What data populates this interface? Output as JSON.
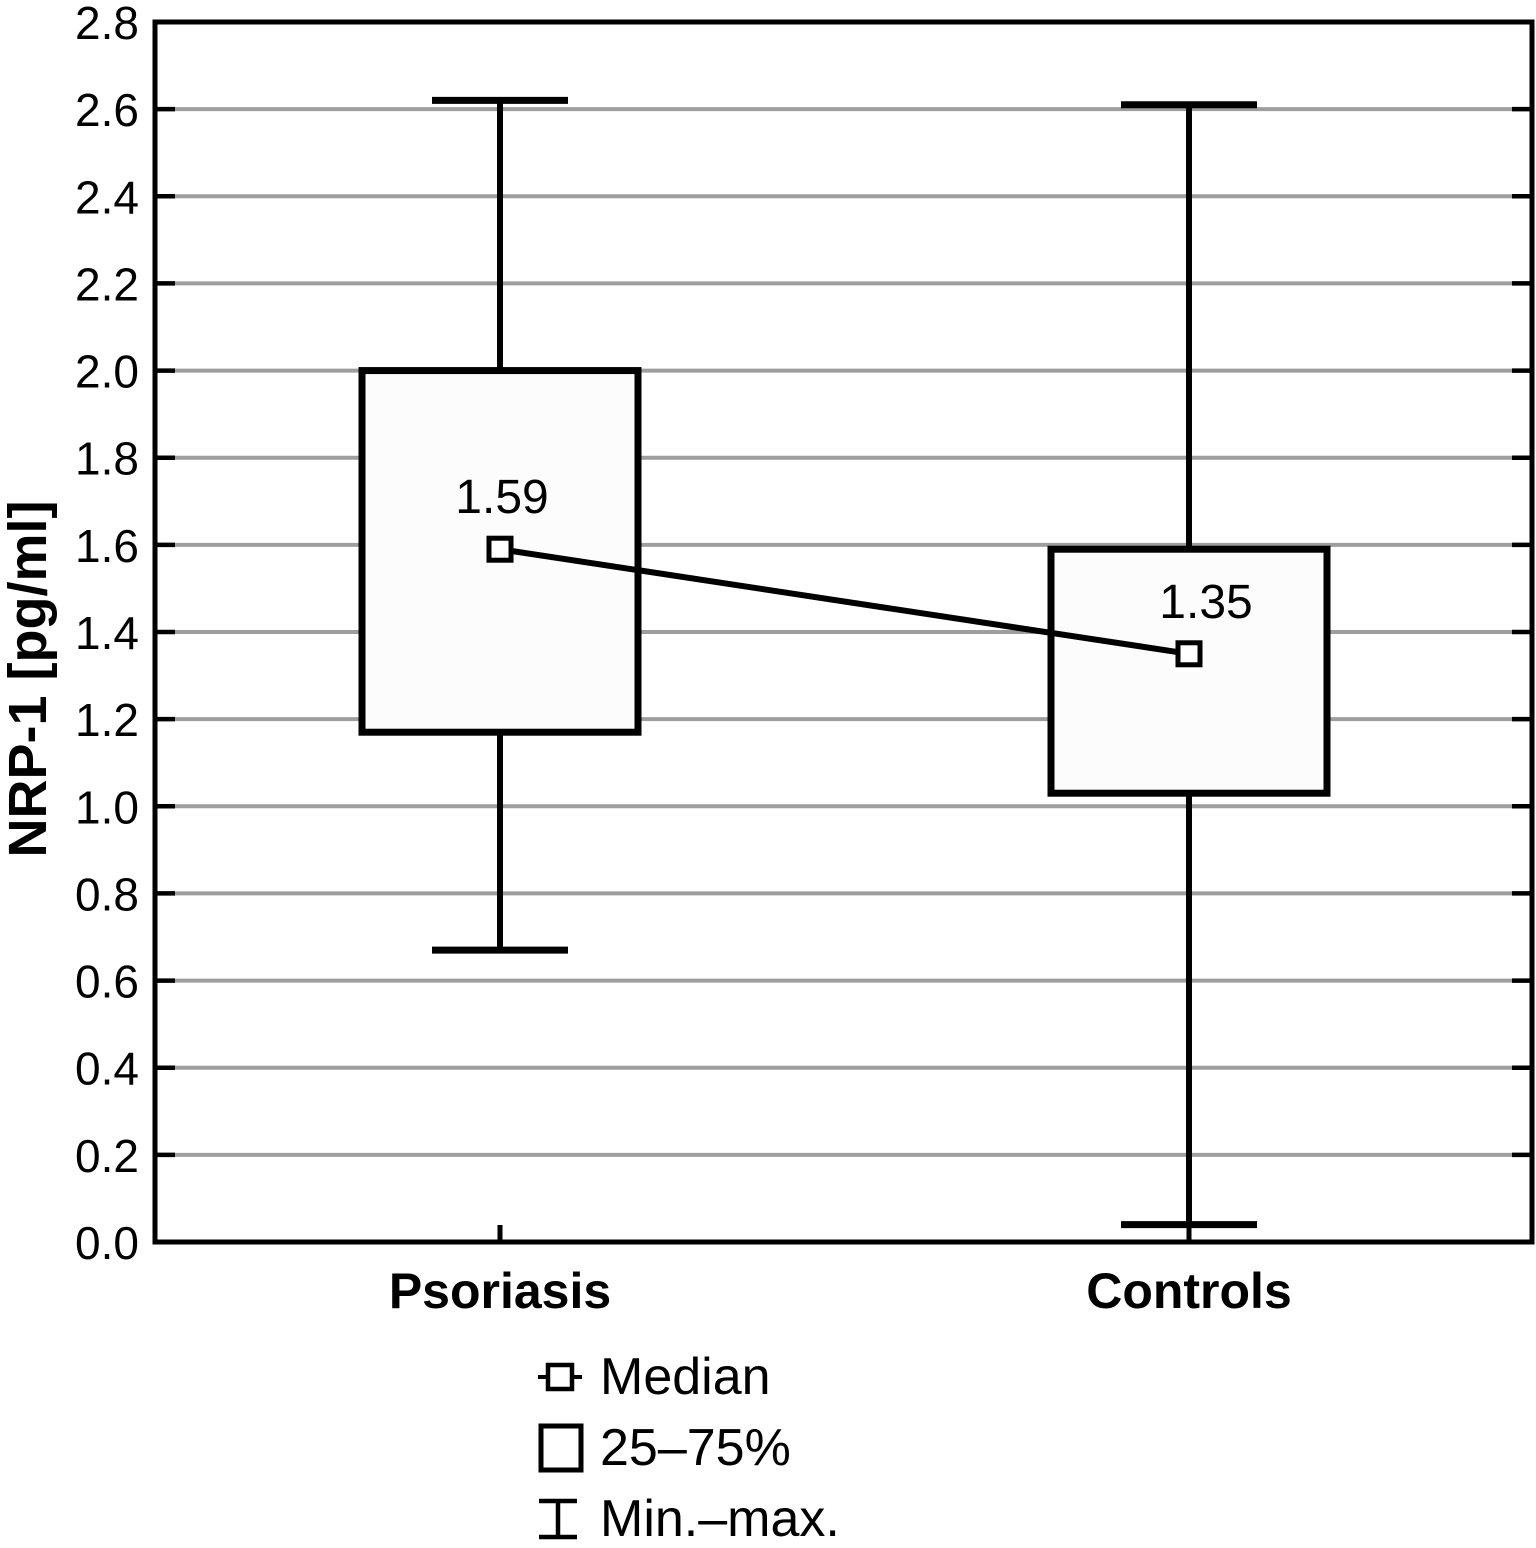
{
  "chart_data": {
    "type": "box",
    "ylabel": "NRP-1 [pg/ml]",
    "xlabel": "",
    "ylim": [
      0.0,
      2.8
    ],
    "ytick_step": 0.2,
    "grid": "horizontal",
    "legend_position": "bottom",
    "categories": [
      "Psoriasis",
      "Controls"
    ],
    "series": [
      {
        "name": "Psoriasis",
        "min": 0.67,
        "q1": 1.17,
        "median": 1.59,
        "q3": 2.0,
        "max": 2.62,
        "median_label": "1.59"
      },
      {
        "name": "Controls",
        "min": 0.04,
        "q1": 1.03,
        "median": 1.35,
        "q3": 1.59,
        "max": 2.61,
        "median_label": "1.35"
      }
    ],
    "legend": [
      {
        "icon": "median-marker-icon",
        "label": "Median"
      },
      {
        "icon": "iqr-box-icon",
        "label": "25–75%"
      },
      {
        "icon": "min-max-whisker-icon",
        "label": "Min.–max."
      }
    ],
    "colors": {
      "frame": "#000000",
      "grid": "#9e9e9e",
      "box_fill": "#fcfcfc",
      "box_stroke": "#000000",
      "marker_fill": "#ffffff",
      "text": "#000000",
      "background": "#ffffff"
    }
  }
}
